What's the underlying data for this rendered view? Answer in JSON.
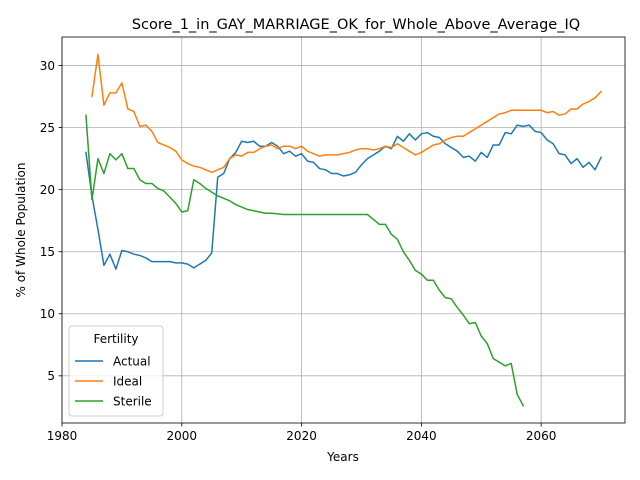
{
  "chart_data": {
    "type": "line",
    "title": "Score_1_in_GAY_MARRIAGE_OK_for_Whole_Above_Average_IQ",
    "xlabel": "Years",
    "ylabel": "% of Whole Population",
    "xlim": [
      1980,
      2074
    ],
    "ylim": [
      1.2,
      32.3
    ],
    "xticks": [
      1980,
      2000,
      2020,
      2040,
      2060
    ],
    "yticks": [
      5,
      10,
      15,
      20,
      25,
      30
    ],
    "grid": true,
    "legend": {
      "title": "Fertility",
      "location": "lower-left"
    },
    "series": [
      {
        "name": "Actual",
        "color": "#1f77b4",
        "x": [
          1984,
          1985,
          1986,
          1987,
          1988,
          1989,
          1990,
          1991,
          1992,
          1993,
          1994,
          1995,
          1996,
          1997,
          1998,
          1999,
          2000,
          2001,
          2002,
          2003,
          2004,
          2005,
          2006,
          2007,
          2008,
          2009,
          2010,
          2011,
          2012,
          2013,
          2014,
          2015,
          2016,
          2017,
          2018,
          2019,
          2020,
          2021,
          2022,
          2023,
          2024,
          2025,
          2026,
          2027,
          2028,
          2029,
          2030,
          2031,
          2032,
          2033,
          2034,
          2035,
          2036,
          2037,
          2038,
          2039,
          2040,
          2041,
          2042,
          2043,
          2044,
          2045,
          2046,
          2047,
          2048,
          2049,
          2050,
          2051,
          2052,
          2053,
          2054,
          2055,
          2056,
          2057,
          2058,
          2059,
          2060,
          2061,
          2062,
          2063,
          2064,
          2065,
          2066,
          2067,
          2068,
          2069,
          2070
        ],
        "y": [
          23.0,
          19.5,
          16.8,
          13.9,
          14.8,
          13.6,
          15.1,
          15.0,
          14.8,
          14.7,
          14.5,
          14.2,
          14.2,
          14.2,
          14.2,
          14.1,
          14.1,
          14.0,
          13.7,
          14.0,
          14.3,
          14.9,
          21.0,
          21.3,
          22.5,
          23.0,
          23.9,
          23.8,
          23.9,
          23.5,
          23.5,
          23.8,
          23.5,
          22.9,
          23.1,
          22.7,
          22.9,
          22.3,
          22.2,
          21.7,
          21.6,
          21.3,
          21.3,
          21.1,
          21.2,
          21.4,
          22.0,
          22.5,
          22.8,
          23.1,
          23.5,
          23.3,
          24.3,
          23.9,
          24.5,
          24.0,
          24.5,
          24.6,
          24.3,
          24.2,
          23.7,
          23.4,
          23.1,
          22.6,
          22.7,
          22.3,
          23.0,
          22.6,
          23.6,
          23.6,
          24.6,
          24.5,
          25.2,
          25.1,
          25.2,
          24.7,
          24.6,
          24.0,
          23.7,
          22.9,
          22.8,
          22.1,
          22.5,
          21.8,
          22.2,
          21.6,
          22.6
        ]
      },
      {
        "name": "Ideal",
        "color": "#ff7f0e",
        "x": [
          1985,
          1986,
          1987,
          1988,
          1989,
          1990,
          1991,
          1992,
          1993,
          1994,
          1995,
          1996,
          1997,
          1998,
          1999,
          2000,
          2001,
          2002,
          2003,
          2004,
          2005,
          2006,
          2007,
          2008,
          2009,
          2010,
          2011,
          2012,
          2013,
          2014,
          2015,
          2016,
          2017,
          2018,
          2019,
          2020,
          2021,
          2022,
          2023,
          2024,
          2025,
          2026,
          2027,
          2028,
          2029,
          2030,
          2031,
          2032,
          2033,
          2034,
          2035,
          2036,
          2037,
          2038,
          2039,
          2040,
          2041,
          2042,
          2043,
          2044,
          2045,
          2046,
          2047,
          2048,
          2049,
          2050,
          2051,
          2052,
          2053,
          2054,
          2055,
          2056,
          2057,
          2058,
          2059,
          2060,
          2061,
          2062,
          2063,
          2064,
          2065,
          2066,
          2067,
          2068,
          2069,
          2070
        ],
        "y": [
          27.5,
          30.9,
          26.8,
          27.8,
          27.8,
          28.6,
          26.5,
          26.3,
          25.1,
          25.2,
          24.7,
          23.8,
          23.6,
          23.4,
          23.1,
          22.4,
          22.1,
          21.9,
          21.8,
          21.6,
          21.4,
          21.6,
          21.8,
          22.5,
          22.8,
          22.7,
          23.0,
          23.0,
          23.3,
          23.5,
          23.6,
          23.3,
          23.5,
          23.5,
          23.3,
          23.5,
          23.1,
          22.9,
          22.7,
          22.8,
          22.8,
          22.8,
          22.9,
          23.0,
          23.2,
          23.3,
          23.3,
          23.2,
          23.3,
          23.5,
          23.4,
          23.7,
          23.4,
          23.1,
          22.8,
          23.0,
          23.3,
          23.6,
          23.7,
          24.0,
          24.2,
          24.3,
          24.3,
          24.6,
          24.9,
          25.2,
          25.5,
          25.8,
          26.1,
          26.2,
          26.4,
          26.4,
          26.4,
          26.4,
          26.4,
          26.4,
          26.2,
          26.3,
          26.0,
          26.1,
          26.5,
          26.5,
          26.9,
          27.1,
          27.4,
          27.9
        ]
      },
      {
        "name": "Sterile",
        "color": "#2ca02c",
        "x": [
          1984,
          1985,
          1986,
          1987,
          1988,
          1989,
          1990,
          1991,
          1992,
          1993,
          1994,
          1995,
          1996,
          1997,
          1998,
          1999,
          2000,
          2001,
          2002,
          2003,
          2004,
          2005,
          2006,
          2007,
          2008,
          2009,
          2010,
          2011,
          2012,
          2013,
          2014,
          2015,
          2016,
          2017,
          2018,
          2019,
          2020,
          2021,
          2022,
          2023,
          2024,
          2025,
          2026,
          2027,
          2028,
          2029,
          2030,
          2031,
          2032,
          2033,
          2034,
          2035,
          2036,
          2037,
          2038,
          2039,
          2040,
          2041,
          2042,
          2043,
          2044,
          2045,
          2046,
          2047,
          2048,
          2049,
          2050,
          2051,
          2052,
          2053,
          2054,
          2055,
          2056,
          2057
        ],
        "y": [
          26.0,
          19.2,
          22.5,
          21.3,
          22.9,
          22.4,
          22.9,
          21.7,
          21.7,
          20.8,
          20.5,
          20.5,
          20.1,
          19.9,
          19.4,
          18.9,
          18.2,
          18.3,
          20.8,
          20.5,
          20.1,
          19.8,
          19.5,
          19.3,
          19.1,
          18.8,
          18.6,
          18.4,
          18.3,
          18.2,
          18.1,
          18.1,
          18.05,
          18.0,
          18.0,
          18.0,
          18.0,
          18.0,
          18.0,
          18.0,
          18.0,
          18.0,
          18.0,
          18.0,
          18.0,
          18.0,
          18.0,
          18.0,
          17.6,
          17.2,
          17.2,
          16.4,
          16.0,
          15.0,
          14.3,
          13.5,
          13.2,
          12.7,
          12.7,
          11.9,
          11.3,
          11.2,
          10.5,
          9.9,
          9.2,
          9.3,
          8.2,
          7.6,
          6.4,
          6.1,
          5.8,
          6.0,
          3.5,
          2.6
        ]
      }
    ]
  }
}
